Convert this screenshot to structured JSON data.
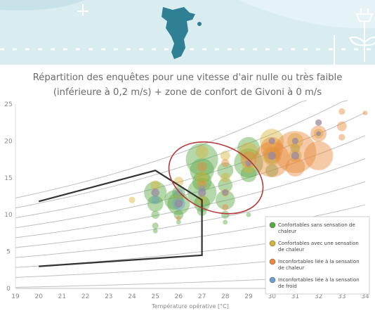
{
  "chart_data": {
    "type": "scatter",
    "title_line1": "Répartition des enquêtes pour une vitesse d'air nulle ou très faible",
    "title_line2": "(inférieure à 0,2 m/s) + zone de confort de Givoni à 0 m/s",
    "xlabel": "Température opérative [°C]",
    "xlim": [
      19,
      34
    ],
    "ylim": [
      0,
      25
    ],
    "x_ticks": [
      19,
      20,
      21,
      22,
      23,
      24,
      25,
      26,
      27,
      28,
      29,
      30,
      31,
      32,
      33,
      34
    ],
    "y_ticks": [
      0,
      5,
      10,
      15,
      20,
      25
    ],
    "legend": {
      "position": "bottom-right",
      "entries": [
        {
          "label_1": "Confortables sans sensation de",
          "label_2": "chaleur",
          "color": "#5aa844"
        },
        {
          "label_1": "Confortables avec une sensation",
          "label_2": "de chaleur",
          "color": "#d6b43a"
        },
        {
          "label_1": "Inconfortables liée à la sensation",
          "label_2": "de chaleur",
          "color": "#e88a3c"
        },
        {
          "label_1": "Inconfortables liée à la sensation",
          "label_2": "de froid",
          "color": "#6a9fd4"
        }
      ]
    },
    "comfort_zone": [
      [
        20,
        11.8
      ],
      [
        25,
        16
      ],
      [
        27,
        12
      ],
      [
        27,
        4.5
      ],
      [
        20,
        3
      ]
    ],
    "highlight_ellipse": {
      "cx": 27.6,
      "cy": 15,
      "rx": 2.1,
      "ry": 4.5
    },
    "colors": {
      "green": "#5aa844",
      "yellow": "#d6b43a",
      "orange": "#e88a3c",
      "blue": "#6a9fd4",
      "grey": "#9a8aa0",
      "zone": "#333333",
      "ellipse": "#b53a3a",
      "curve": "#bfbfbf"
    },
    "series": [
      {
        "name": "green",
        "points": [
          [
            25,
            13,
            14
          ],
          [
            25,
            11.5,
            10
          ],
          [
            25,
            10,
            5
          ],
          [
            25,
            8.5,
            4
          ],
          [
            25,
            7.8,
            3
          ],
          [
            25.8,
            12,
            12
          ],
          [
            26,
            13,
            8
          ],
          [
            26,
            11.5,
            14
          ],
          [
            26,
            10,
            6
          ],
          [
            26,
            9,
            3
          ],
          [
            27,
            17.5,
            20
          ],
          [
            27,
            16,
            15
          ],
          [
            27,
            14.5,
            12
          ],
          [
            27,
            13,
            18
          ],
          [
            27,
            11.5,
            10
          ],
          [
            27,
            10.5,
            6
          ],
          [
            28,
            16,
            10
          ],
          [
            28,
            14,
            9
          ],
          [
            28,
            12,
            12
          ],
          [
            28,
            10,
            5
          ],
          [
            28,
            9,
            3
          ],
          [
            29,
            19,
            14
          ],
          [
            29,
            17,
            18
          ],
          [
            29,
            15.5,
            10
          ],
          [
            29,
            10,
            3
          ],
          [
            30,
            18,
            10
          ],
          [
            30,
            16,
            8
          ],
          [
            31,
            19,
            6
          ]
        ]
      },
      {
        "name": "yellow",
        "points": [
          [
            24,
            12,
            4
          ],
          [
            25,
            14,
            6
          ],
          [
            26,
            14.5,
            6
          ],
          [
            26,
            12.5,
            5
          ],
          [
            27,
            18.5,
            8
          ],
          [
            27,
            15,
            8
          ],
          [
            27,
            12,
            6
          ],
          [
            28,
            18,
            6
          ],
          [
            28,
            15,
            6
          ],
          [
            28,
            13,
            5
          ],
          [
            29,
            18.5,
            12
          ],
          [
            29,
            16.5,
            8
          ],
          [
            30,
            20,
            15
          ],
          [
            30,
            18,
            12
          ],
          [
            31,
            20,
            10
          ],
          [
            31,
            18,
            8
          ],
          [
            32,
            21,
            6
          ]
        ]
      },
      {
        "name": "orange",
        "points": [
          [
            26,
            9.5,
            3
          ],
          [
            27,
            16.5,
            6
          ],
          [
            27,
            14,
            6
          ],
          [
            28,
            17,
            5
          ],
          [
            28,
            11,
            4
          ],
          [
            29,
            17.5,
            10
          ],
          [
            30,
            17.5,
            22
          ],
          [
            30,
            19,
            14
          ],
          [
            31,
            18.5,
            26
          ],
          [
            31,
            16.5,
            12
          ],
          [
            32,
            18,
            18
          ],
          [
            32,
            21,
            10
          ],
          [
            33,
            22,
            6
          ],
          [
            33,
            24,
            4
          ],
          [
            33,
            20.5,
            4
          ],
          [
            34,
            23.8,
            3
          ]
        ]
      },
      {
        "name": "blue",
        "points": [
          [
            25,
            12,
            5
          ],
          [
            26,
            11.5,
            8
          ],
          [
            26,
            13,
            5
          ],
          [
            27,
            13.5,
            4
          ]
        ]
      },
      {
        "name": "grey",
        "points": [
          [
            25,
            13,
            5
          ],
          [
            26,
            11.5,
            5
          ],
          [
            27,
            13,
            5
          ],
          [
            28,
            13,
            4
          ],
          [
            29,
            17,
            4
          ],
          [
            30,
            18,
            5
          ],
          [
            30,
            20,
            4
          ],
          [
            31,
            18,
            5
          ],
          [
            31,
            20,
            4
          ],
          [
            32,
            22.5,
            4
          ],
          [
            32,
            21,
            3
          ]
        ]
      }
    ]
  }
}
